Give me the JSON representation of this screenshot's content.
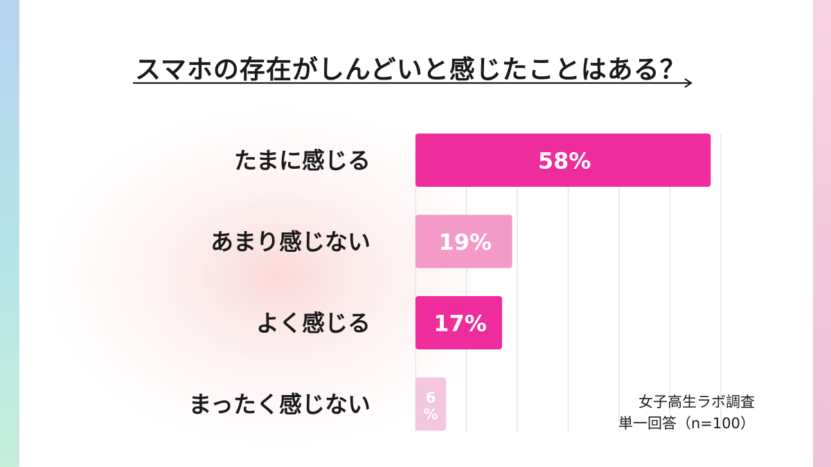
{
  "colors": {
    "bar_colors": [
      "#ee2c9b",
      "#f39ac8",
      "#ee2c9b",
      "#f5c6df"
    ],
    "gridline": "#e2e2e2",
    "text": "#1a1a1a",
    "edge_left": "#b9d3ef",
    "edge_right": "#f2c9dc"
  },
  "source": {
    "line1": "女子高生ラボ調査",
    "line2": "単一回答（n=100）"
  },
  "chart_data": {
    "type": "bar",
    "orientation": "horizontal",
    "title": "スマホの存在がしんどいと感じたことはある？",
    "categories": [
      "たまに感じる",
      "あまり感じない",
      "よく感じる",
      "まったく感じない"
    ],
    "values": [
      58,
      19,
      17,
      6
    ],
    "data_labels": [
      "58%",
      "19%",
      "17%",
      "6%"
    ],
    "unit": "%",
    "xlim": [
      0,
      60
    ],
    "grid": true,
    "legend": "none"
  }
}
